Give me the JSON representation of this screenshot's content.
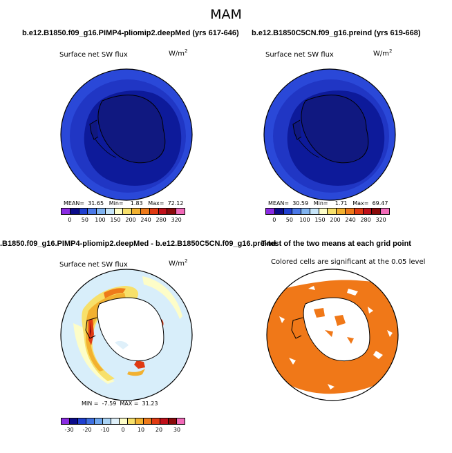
{
  "title": "MAM",
  "panels": {
    "top_left": {
      "title": "b.e12.B1850.f09_g16.PIMP4-pliomip2.deepMed (yrs 617-646)",
      "subtitle": "Surface net SW flux",
      "units_base": "W/m",
      "units_exp": "2",
      "stats": "MEAN=  31.65   Min=    1.83   Max=  72.12",
      "colorbar_colors": [
        "#8a2be2",
        "#0b0b8a",
        "#1f3fd0",
        "#4a78e8",
        "#7fb2f0",
        "#c6e4f8",
        "#fdfdc8",
        "#f7e06a",
        "#f2b130",
        "#ee7a1a",
        "#e03a12",
        "#c0101a",
        "#8a0a0a",
        "#f26ab8"
      ],
      "tick_labels": [
        "0",
        "50",
        "100",
        "150",
        "200",
        "240",
        "280",
        "320"
      ]
    },
    "top_right": {
      "title": "b.e12.B1850C5CN.f09_g16.preind (yrs 619-668)",
      "subtitle": "Surface net SW flux",
      "units_base": "W/m",
      "units_exp": "2",
      "stats": "MEAN=  30.59   Min=    1.71   Max=  69.47",
      "colorbar_colors": [
        "#8a2be2",
        "#0b0b8a",
        "#1f3fd0",
        "#4a78e8",
        "#7fb2f0",
        "#c6e4f8",
        "#fdfdc8",
        "#f7e06a",
        "#f2b130",
        "#ee7a1a",
        "#e03a12",
        "#c0101a",
        "#8a0a0a",
        "#f26ab8"
      ],
      "tick_labels": [
        "0",
        "50",
        "100",
        "150",
        "200",
        "240",
        "280",
        "320"
      ]
    },
    "bottom_left": {
      "title": ".B1850.f09_g16.PIMP4-pliomip2.deepMed - b.e12.B1850C5CN.f09_g16.preind",
      "subtitle": "Surface net SW flux",
      "units_base": "W/m",
      "units_exp": "2",
      "stats": "MIN =  -7.59  MAX =  31.23",
      "colorbar_colors": [
        "#8a2be2",
        "#0b0b8a",
        "#1f3fd0",
        "#3e6fe0",
        "#6ea6ee",
        "#a9d3f5",
        "#dff0fa",
        "#fdfdc8",
        "#f7e06a",
        "#f2b130",
        "#ee7a1a",
        "#e03a12",
        "#c0101a",
        "#8a0a0a",
        "#f26ab8"
      ],
      "tick_labels": [
        "-30",
        "-20",
        "-10",
        "0",
        "10",
        "20",
        "30"
      ]
    },
    "bottom_right": {
      "title": "T-test of the two means at each grid point",
      "subtitle": "Colored cells are significant at the 0.05 level"
    }
  },
  "colors": {
    "ocean_blue": "#2a48d8",
    "inner_blue": "#0d1a9a",
    "land_blue": "#101880",
    "diff_bg": "#d8eefa",
    "ttest_orange": "#f07818"
  }
}
